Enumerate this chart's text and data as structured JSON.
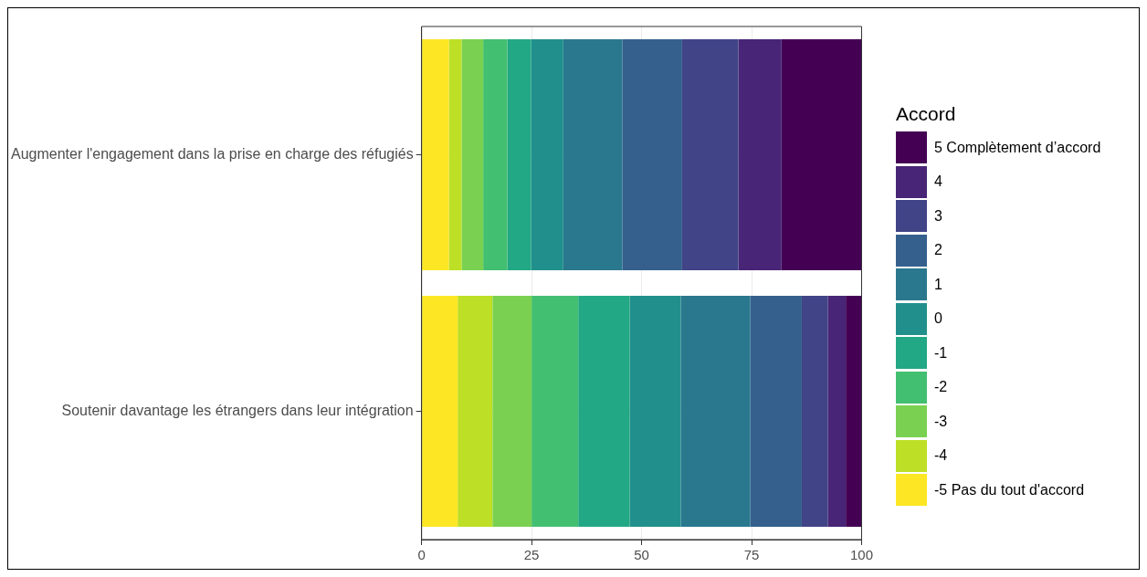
{
  "chart_data": {
    "type": "bar",
    "orientation": "horizontal",
    "stacked": true,
    "legend_title": "Accord",
    "legend": "right",
    "grid": true,
    "xlim": [
      0,
      100
    ],
    "xticks": [
      0,
      25,
      50,
      75,
      100
    ],
    "categories": [
      "Augmenter l'engagement dans la prise en charge des réfugiés",
      "Soutenir davantage les étrangers dans leur intégration"
    ],
    "series": [
      {
        "name": "-5 Pas du tout d'accord",
        "color": "#fde725",
        "values": [
          6.2,
          8.2
        ]
      },
      {
        "name": "-4",
        "color": "#bddf26",
        "values": [
          2.9,
          7.9
        ]
      },
      {
        "name": "-3",
        "color": "#7ad151",
        "values": [
          4.9,
          8.9
        ]
      },
      {
        "name": "-2",
        "color": "#43bf71",
        "values": [
          5.5,
          10.6
        ]
      },
      {
        "name": "-1",
        "color": "#22a884",
        "values": [
          5.4,
          11.7
        ]
      },
      {
        "name": "0",
        "color": "#21908c",
        "values": [
          7.3,
          11.6
        ]
      },
      {
        "name": "1",
        "color": "#2a788e",
        "values": [
          13.4,
          15.8
        ]
      },
      {
        "name": "2",
        "color": "#35608d",
        "values": [
          13.6,
          11.7
        ]
      },
      {
        "name": "3",
        "color": "#414487",
        "values": [
          12.8,
          5.9
        ]
      },
      {
        "name": "4",
        "color": "#482576",
        "values": [
          9.8,
          4.1
        ]
      },
      {
        "name": "5 Complètement d’accord",
        "color": "#440154",
        "values": [
          18.2,
          3.6
        ]
      }
    ]
  }
}
